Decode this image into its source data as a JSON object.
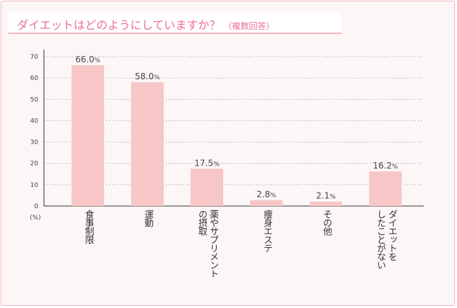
{
  "title": "ダイエットはどのようにしていますか？",
  "title_note": "（複数回答）",
  "unit_label": "(%)",
  "colors": {
    "bar": "#f7c6c6",
    "title": "#ec6d94",
    "border": "#f3b6bf",
    "background": "#fdf6f6"
  },
  "chart_data": {
    "type": "bar",
    "title": "ダイエットはどのようにしていますか？（複数回答）",
    "categories": [
      "食事制限",
      "運動",
      "薬やサプリメント\nの摂取",
      "痩身エステ",
      "その他",
      "ダイエットを\nしたことがない"
    ],
    "values": [
      66.0,
      58.0,
      17.5,
      2.8,
      2.1,
      16.2
    ],
    "value_labels": [
      "66.0",
      "58.0",
      "17.5",
      "2.8",
      "2.1",
      "16.2"
    ],
    "value_suffix": "%",
    "ylabel": "(%)",
    "ylim": [
      0,
      70
    ],
    "yticks": [
      0,
      10,
      20,
      30,
      40,
      50,
      60,
      70
    ],
    "grid": true
  }
}
